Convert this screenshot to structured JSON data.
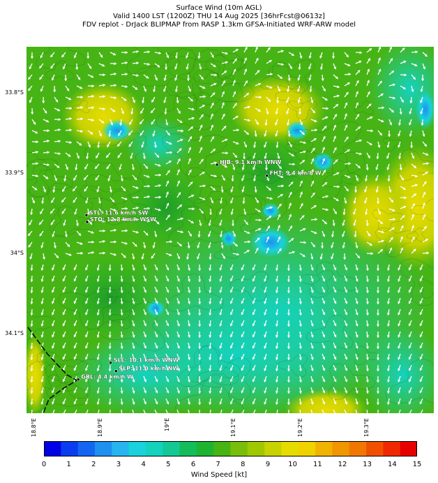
{
  "title": {
    "line1": "Surface Wind (10m AGL)",
    "line2": "Valid 1400 LST (1200Z) THU 14 Aug 2025 [36hrFcst@0613z]",
    "line3": "FDV replot - DrJack BLIPMAP from RASP 1.3km GFSA-Initiated WRF-ARW model"
  },
  "axes": {
    "y_ticks": [
      "33.8°S",
      "33.9°S",
      "34°S",
      "34.1°S"
    ],
    "x_ticks": [
      "18.8°E",
      "18.9°E",
      "19°E",
      "19.1°E",
      "19.2°E",
      "19.3°E"
    ]
  },
  "stations": [
    {
      "code": "HJB",
      "label": "HJB: 9.1 km/h WNW"
    },
    {
      "code": "FHT",
      "label": "FHT: 9.4 km/h W"
    },
    {
      "code": "STL",
      "label": "STL: 11.6 km/h SW"
    },
    {
      "code": "STO",
      "label": "STO: 12.8 km/h WSW"
    },
    {
      "code": "SLL",
      "label": "SLL: 10.1 km/h WNW"
    },
    {
      "code": "SLP",
      "label": "SLP: 11.0 km/h NW"
    },
    {
      "code": "GBL",
      "label": "GBL: 4.4 km/h W"
    }
  ],
  "colorbar": {
    "label": "Wind Speed [kt]",
    "ticks": [
      "0",
      "1",
      "2",
      "3",
      "4",
      "5",
      "6",
      "7",
      "8",
      "9",
      "10",
      "11",
      "12",
      "13",
      "14",
      "15"
    ],
    "colors": [
      "#0000e6",
      "#0a3cf0",
      "#1466f0",
      "#1e90f0",
      "#28b4ee",
      "#19d2dc",
      "#14d2be",
      "#14c896",
      "#14bc5a",
      "#1eb432",
      "#46b414",
      "#78be0a",
      "#a0c800",
      "#c8d200",
      "#e6dc00",
      "#f0d200",
      "#f0b400",
      "#f09600",
      "#f07800",
      "#f05000",
      "#f02800",
      "#e60000"
    ]
  },
  "chart_data": {
    "type": "heatmap",
    "title": "Surface Wind (10m AGL)",
    "xlabel": "",
    "ylabel": "",
    "xlim": [
      18.795,
      19.4
    ],
    "ylim": [
      34.18,
      33.745
    ],
    "colorbar_range": [
      0,
      15
    ],
    "colorbar_label": "Wind Speed [kt]",
    "stations": [
      {
        "code": "HJB",
        "lon": 19.078,
        "lat": -33.885,
        "speed_kmh": 9.1,
        "dir": "WNW"
      },
      {
        "code": "FHT",
        "lon": 19.152,
        "lat": -33.898,
        "speed_kmh": 9.4,
        "dir": "W"
      },
      {
        "code": "STL",
        "lon": 18.884,
        "lat": -33.945,
        "speed_kmh": 11.6,
        "dir": "SW"
      },
      {
        "code": "STO",
        "lon": 18.885,
        "lat": -33.953,
        "speed_kmh": 12.8,
        "dir": "WSW"
      },
      {
        "code": "SLL",
        "lon": 18.92,
        "lat": -34.12,
        "speed_kmh": 10.1,
        "dir": "WNW"
      },
      {
        "code": "SLP",
        "lon": 18.928,
        "lat": -34.13,
        "speed_kmh": 11.0,
        "dir": "NW"
      },
      {
        "code": "GBL",
        "lon": 18.872,
        "lat": -34.14,
        "speed_kmh": 4.4,
        "dir": "W"
      }
    ]
  }
}
